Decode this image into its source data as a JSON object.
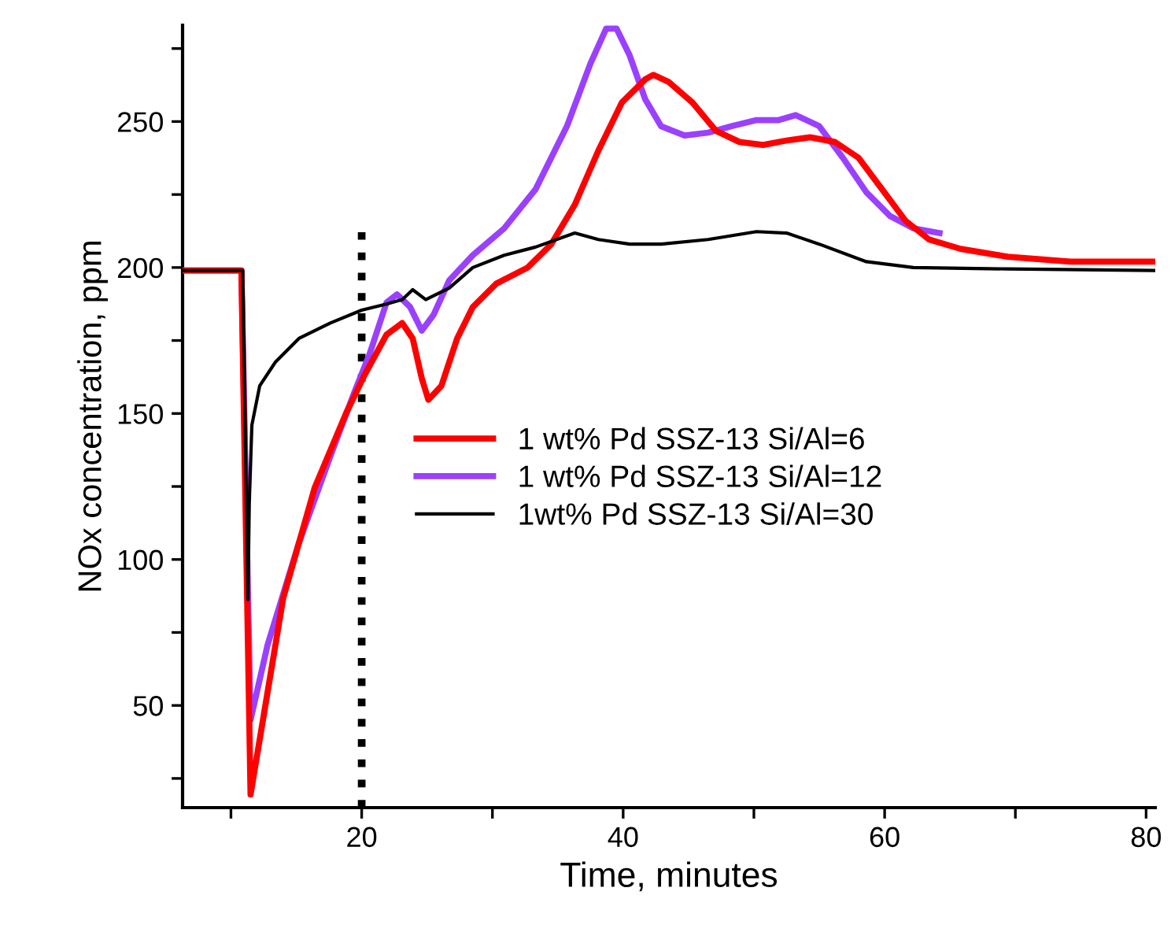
{
  "chart_data": {
    "type": "line",
    "xlabel": "Time, minutes",
    "ylabel": "NOx concentration, ppm",
    "xlim": [
      6.3,
      80.7
    ],
    "ylim": [
      15,
      283
    ],
    "xticks": [
      {
        "value": 10,
        "label": null
      },
      20,
      {
        "value": 30,
        "label": null
      },
      40,
      {
        "value": 50,
        "label": null
      },
      60,
      {
        "value": 70,
        "label": null
      },
      80
    ],
    "yticks": [
      {
        "value": 25,
        "label": null
      },
      50,
      {
        "value": 75,
        "label": null
      },
      100,
      {
        "value": 125,
        "label": null
      },
      150,
      {
        "value": 175,
        "label": null
      },
      200,
      {
        "value": 225,
        "label": null
      },
      250,
      {
        "value": 275,
        "label": null
      }
    ],
    "grid": false,
    "legend": "center",
    "marker": "none",
    "line_style": "solid",
    "ref_lines": [
      {
        "axis": "x",
        "value": 20,
        "line_style": "dotted",
        "color": "#000000"
      }
    ],
    "series": [
      {
        "name": "1 wt% Pd SSZ-13 Si/Al=6",
        "color": "#ff0000",
        "x": [
          6.3,
          10.8,
          11.5,
          12.8,
          14.0,
          16.4,
          18.8,
          20.2,
          21.9,
          23.1,
          23.9,
          24.6,
          25.1,
          26.1,
          27.3,
          28.5,
          30.3,
          32.7,
          34.5,
          36.3,
          38.1,
          39.9,
          41.7,
          42.3,
          43.5,
          45.3,
          47.1,
          48.9,
          50.7,
          52.5,
          54.3,
          56.2,
          58.0,
          59.8,
          61.6,
          63.4,
          65.8,
          69.4,
          74.2,
          80.7
        ],
        "values": [
          199,
          199,
          19.5,
          54.5,
          86.8,
          124.5,
          150,
          163,
          177,
          181,
          175.7,
          162,
          154.7,
          159.5,
          175.7,
          186.5,
          194.5,
          200,
          208,
          221.5,
          240,
          256.5,
          264.5,
          266,
          263.5,
          256.5,
          246.8,
          243,
          242,
          243.5,
          244.6,
          243,
          237.6,
          226.8,
          216,
          209.6,
          206.4,
          203.7,
          202,
          202
        ]
      },
      {
        "name": "1 wt% Pd SSZ-13 Si/Al=12",
        "color": "#9b40ff",
        "x": [
          6.3,
          10.8,
          11.5,
          12.8,
          15.2,
          17.6,
          19.4,
          20.6,
          21.9,
          22.7,
          23.7,
          24.6,
          25.5,
          26.7,
          28.5,
          30.9,
          33.3,
          35.7,
          37.5,
          38.7,
          39.5,
          40.5,
          41.7,
          42.9,
          44.7,
          46.5,
          48.3,
          50.2,
          51.9,
          53.2,
          55.0,
          56.8,
          58.6,
          60.4,
          62.2,
          64.2
        ],
        "values": [
          199,
          199,
          45,
          70.7,
          105.7,
          135.3,
          156.8,
          170.3,
          188,
          190.8,
          186.5,
          178.4,
          183.8,
          195.6,
          204.2,
          213.4,
          226.8,
          248.4,
          269.9,
          281.8,
          281.8,
          272.6,
          257.5,
          248.4,
          245.2,
          246.2,
          248.4,
          250.5,
          250.5,
          252.2,
          248.4,
          237.6,
          225.8,
          217.7,
          213.4,
          211.8
        ]
      },
      {
        "name": "1wt% Pd SSZ-13 Si/Al=30",
        "color": "#000000",
        "x": [
          6.3,
          10.9,
          11.3,
          11.4,
          11.6,
          12.2,
          13.4,
          15.2,
          17.6,
          20.0,
          21.9,
          23.1,
          23.9,
          24.9,
          26.7,
          28.5,
          30.9,
          33.3,
          36.3,
          38.1,
          40.5,
          42.9,
          46.5,
          50.2,
          52.5,
          55.0,
          58.6,
          62.2,
          69.4,
          80.7
        ],
        "values": [
          199,
          199,
          86.3,
          119,
          146,
          159.5,
          167.6,
          175.7,
          181,
          185.4,
          187.5,
          189,
          192.4,
          189,
          193,
          200,
          204.2,
          207,
          211.8,
          209.6,
          208,
          208,
          209.6,
          212.3,
          211.8,
          208,
          202,
          200,
          199.5,
          199
        ]
      }
    ]
  }
}
